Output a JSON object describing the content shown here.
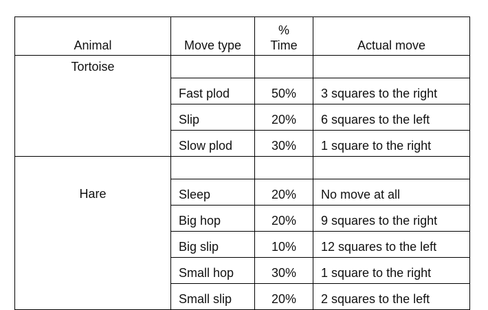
{
  "table": {
    "headers": {
      "animal": "Animal",
      "move_type": "Move type",
      "percent_line1": "%",
      "percent_line2": "Time",
      "actual_move": "Actual move"
    },
    "groups": [
      {
        "animal": "Tortoise",
        "rows": [
          {
            "move_type": "Fast plod",
            "percent": "50%",
            "actual_move": "3 squares to the right"
          },
          {
            "move_type": "Slip",
            "percent": "20%",
            "actual_move": "6 squares to the left"
          },
          {
            "move_type": "Slow plod",
            "percent": "30%",
            "actual_move": "1 square to the right"
          }
        ]
      },
      {
        "animal": "Hare",
        "rows": [
          {
            "move_type": "Sleep",
            "percent": "20%",
            "actual_move": "No move at all"
          },
          {
            "move_type": "Big hop",
            "percent": "20%",
            "actual_move": "9 squares to the right"
          },
          {
            "move_type": "Big slip",
            "percent": "10%",
            "actual_move": "12 squares to the left"
          },
          {
            "move_type": "Small hop",
            "percent": "30%",
            "actual_move": "1 square to the right"
          },
          {
            "move_type": "Small slip",
            "percent": "20%",
            "actual_move": "2 squares to the left"
          }
        ]
      }
    ]
  }
}
